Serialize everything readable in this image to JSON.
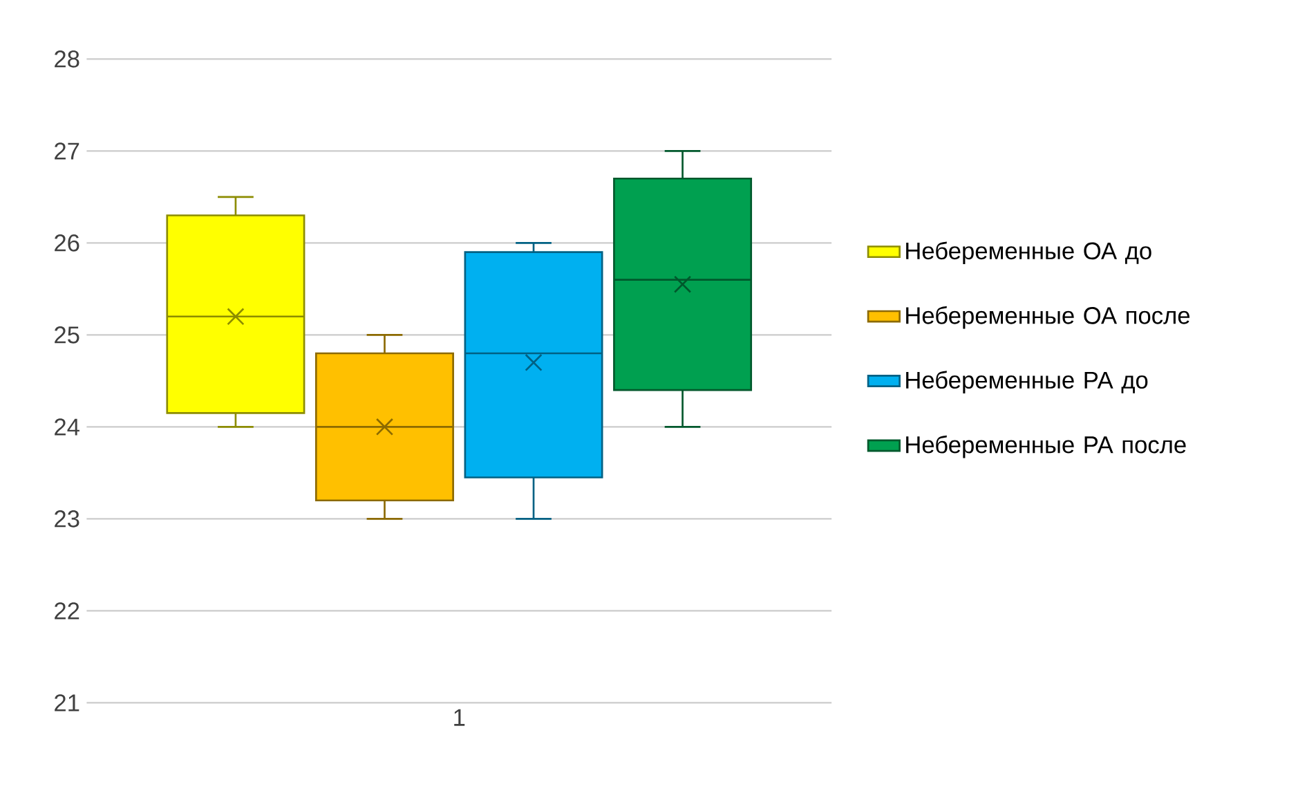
{
  "chart_data": {
    "type": "box",
    "categories": [
      "1"
    ],
    "series": [
      {
        "name": "Небеременные ОА до",
        "color": "#ffff00",
        "boxes": [
          {
            "low": 24.0,
            "q1": 24.15,
            "median": 25.2,
            "q3": 26.3,
            "high": 26.5,
            "mean": 25.2
          }
        ]
      },
      {
        "name": "Небеременные ОА после",
        "color": "#ffc000",
        "boxes": [
          {
            "low": 23.0,
            "q1": 23.2,
            "median": 24.0,
            "q3": 24.8,
            "high": 25.0,
            "mean": 24.0
          }
        ]
      },
      {
        "name": "Небеременные РА до",
        "color": "#00b0f0",
        "boxes": [
          {
            "low": 23.0,
            "q1": 23.45,
            "median": 24.8,
            "q3": 25.9,
            "high": 26.0,
            "mean": 24.7
          }
        ]
      },
      {
        "name": "Небеременные РА после",
        "color": "#00a050",
        "boxes": [
          {
            "low": 24.0,
            "q1": 24.4,
            "median": 25.6,
            "q3": 26.7,
            "high": 27.0,
            "mean": 25.55
          }
        ]
      }
    ],
    "ylim": [
      21,
      28
    ],
    "yticks": [
      21,
      22,
      23,
      24,
      25,
      26,
      27,
      28
    ],
    "grid": "y",
    "legend": "right"
  }
}
